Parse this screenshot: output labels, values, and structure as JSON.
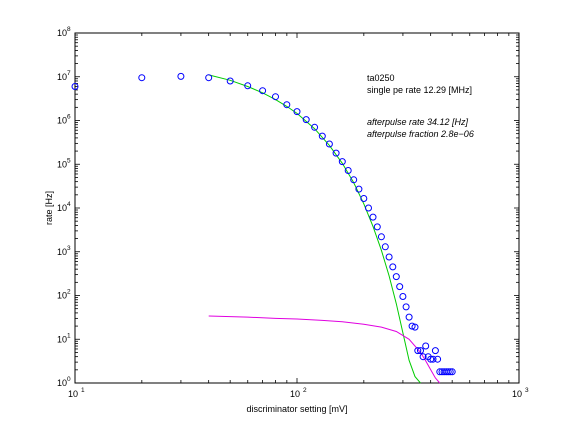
{
  "chart_data": {
    "type": "scatter",
    "title": "",
    "xlabel": "discriminator setting [mV]",
    "ylabel": "rate [Hz]",
    "xscale": "log",
    "yscale": "log",
    "xlim": [
      10,
      1000
    ],
    "ylim": [
      1,
      100000000
    ],
    "x_ticks": [
      {
        "base": "10",
        "exp": "1",
        "value": 10
      },
      {
        "base": "10",
        "exp": "2",
        "value": 100
      },
      {
        "base": "10",
        "exp": "3",
        "value": 1000
      }
    ],
    "y_ticks": [
      {
        "base": "10",
        "exp": "0",
        "value": 1
      },
      {
        "base": "10",
        "exp": "1",
        "value": 10
      },
      {
        "base": "10",
        "exp": "2",
        "value": 100
      },
      {
        "base": "10",
        "exp": "3",
        "value": 1000
      },
      {
        "base": "10",
        "exp": "4",
        "value": 10000
      },
      {
        "base": "10",
        "exp": "5",
        "value": 100000
      },
      {
        "base": "10",
        "exp": "6",
        "value": 1000000
      },
      {
        "base": "10",
        "exp": "7",
        "value": 10000000
      },
      {
        "base": "10",
        "exp": "8",
        "value": 100000000
      }
    ],
    "grid": false,
    "annotations": {
      "id": "ta0250",
      "single_pe": "single pe rate 12.29 [MHz]",
      "afterpulse_rate": "afterpulse rate 34.12 [Hz]",
      "afterpulse_fraction": "afterpulse fraction 2.8e−06"
    },
    "series": [
      {
        "kind": "points",
        "color": "#0000ff",
        "marker": "circle",
        "x": [
          10,
          20,
          30,
          40,
          50,
          60,
          70,
          80,
          90,
          100,
          110,
          120,
          130,
          140,
          150,
          160,
          170,
          180,
          190,
          200,
          210,
          220,
          230,
          240,
          250,
          260,
          270,
          280,
          290,
          300,
          310,
          320,
          330,
          340,
          350,
          360,
          370,
          380,
          390,
          400,
          410,
          420,
          430,
          440,
          450,
          460,
          470,
          480,
          490,
          500
        ],
        "y": [
          6000000,
          9500000,
          10200000,
          9500000,
          8000000,
          6200000,
          4800000,
          3500000,
          2300000,
          1600000,
          1050000,
          700000,
          440000,
          290000,
          180000,
          115000,
          72000,
          44000,
          27000,
          16500,
          10000,
          6200,
          3700,
          2200,
          1300,
          760,
          450,
          270,
          160,
          95,
          55,
          32,
          20,
          19,
          5.5,
          5.5,
          4,
          7,
          4,
          3.5,
          3.5,
          5.5,
          3.5,
          1.8,
          1.8,
          1.8,
          1.8,
          1.8,
          1.8,
          1.8
        ]
      },
      {
        "kind": "line",
        "color": "#00cc00",
        "x": [
          40,
          50,
          60,
          70,
          80,
          90,
          100,
          120,
          140,
          160,
          180,
          200,
          220,
          240,
          260,
          280,
          300,
          320,
          340,
          360
        ],
        "y": [
          11000000,
          8300000,
          6000000,
          4300000,
          3000000,
          2100000,
          1450000,
          650000,
          270000,
          105000,
          38000,
          12500,
          3800,
          1080,
          280,
          65,
          14,
          3.3,
          1.4,
          1
        ]
      },
      {
        "kind": "line",
        "color": "#e000e0",
        "x": [
          40,
          60,
          80,
          100,
          130,
          160,
          200,
          240,
          280,
          320,
          360,
          380,
          400,
          420,
          440
        ],
        "y": [
          34,
          32,
          30,
          29,
          27,
          25,
          22,
          19,
          15,
          10,
          5,
          3.2,
          2,
          1.3,
          1
        ]
      }
    ]
  }
}
